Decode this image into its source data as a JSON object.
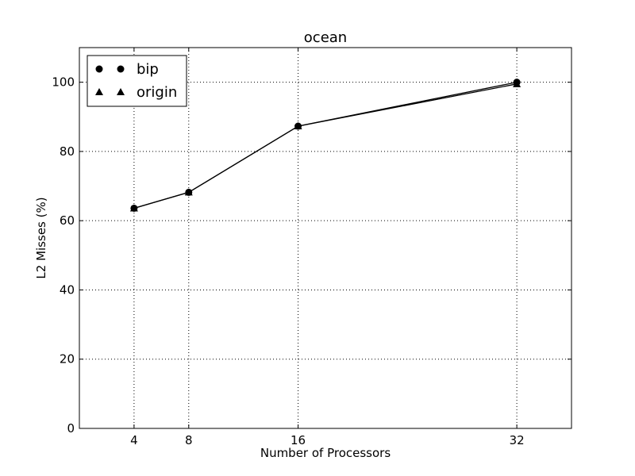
{
  "chart_data": {
    "type": "line",
    "title": "ocean",
    "xlabel": "Number of Processors",
    "ylabel": "L2 Misses (%)",
    "x": [
      4,
      8,
      16,
      32
    ],
    "x_ticks": [
      "4",
      "8",
      "16",
      "32"
    ],
    "y_ticks": [
      "0",
      "20",
      "40",
      "60",
      "80",
      "100"
    ],
    "xlim": [
      0,
      36
    ],
    "ylim": [
      0,
      110
    ],
    "grid": true,
    "legend_position": "top-left",
    "series": [
      {
        "name": "bip",
        "marker": "circle",
        "color": "#000000",
        "values": [
          63.6,
          68.2,
          87.3,
          100.0
        ]
      },
      {
        "name": "origin",
        "marker": "triangle",
        "color": "#000000",
        "values": [
          63.6,
          68.2,
          87.3,
          99.5
        ]
      }
    ]
  }
}
